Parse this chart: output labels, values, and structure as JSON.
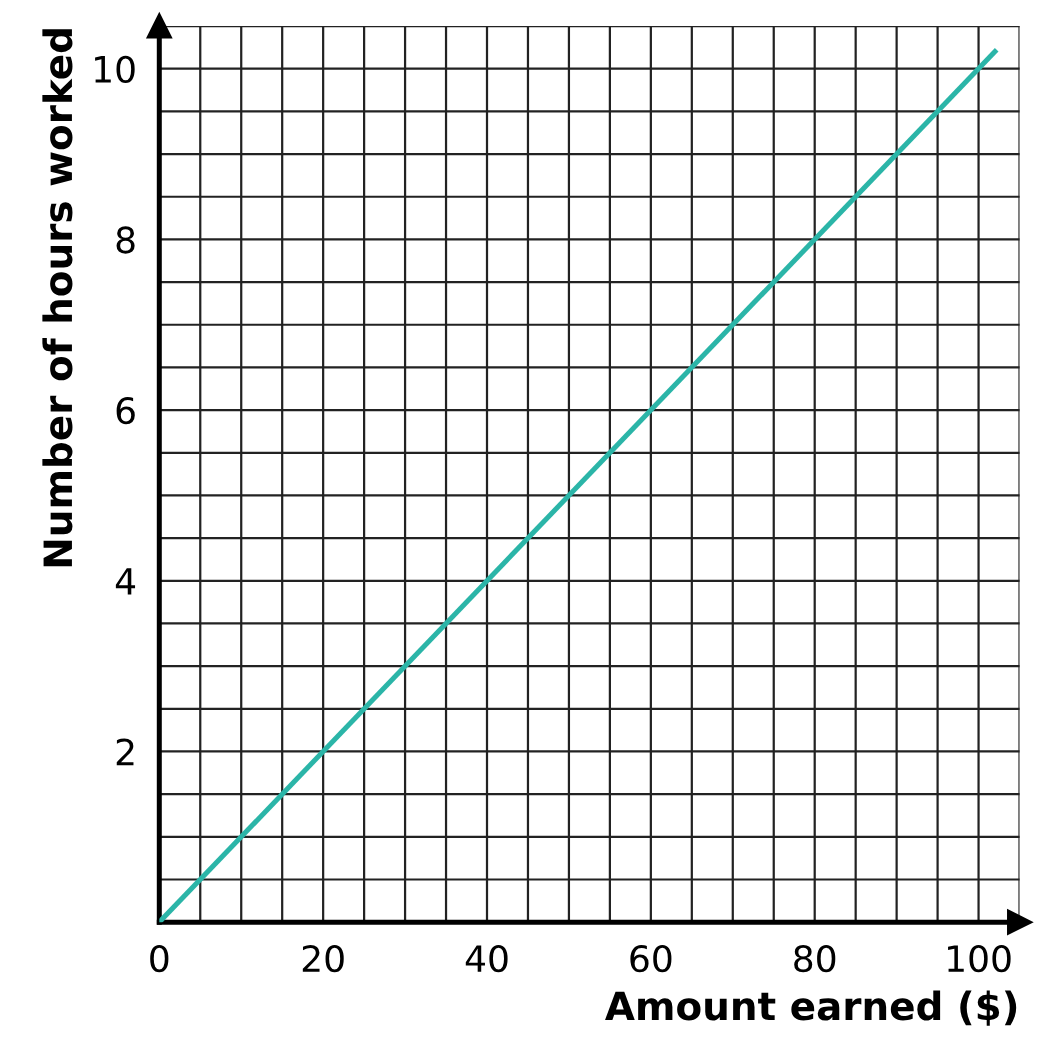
{
  "chart_data": {
    "type": "line",
    "xlabel": "Amount earned ($)",
    "ylabel": "Number of hours worked",
    "x": [
      0,
      102
    ],
    "series": [
      {
        "color": "#2bb5a8",
        "values": [
          0,
          10.2
        ]
      }
    ],
    "xlim": [
      0,
      105
    ],
    "ylim": [
      0,
      10.5
    ],
    "xticks": [
      0,
      {
        "value": 5,
        "label": null
      },
      {
        "value": 10,
        "label": null
      },
      {
        "value": 15,
        "label": null
      },
      20,
      {
        "value": 25,
        "label": null
      },
      {
        "value": 30,
        "label": null
      },
      {
        "value": 35,
        "label": null
      },
      40,
      {
        "value": 45,
        "label": null
      },
      {
        "value": 50,
        "label": null
      },
      {
        "value": 55,
        "label": null
      },
      60,
      {
        "value": 65,
        "label": null
      },
      {
        "value": 70,
        "label": null
      },
      {
        "value": 75,
        "label": null
      },
      80,
      {
        "value": 85,
        "label": null
      },
      {
        "value": 90,
        "label": null
      },
      {
        "value": 95,
        "label": null
      },
      100,
      {
        "value": 105,
        "label": null
      }
    ],
    "yticks": [
      {
        "value": 0.5,
        "label": null
      },
      {
        "value": 1,
        "label": null
      },
      {
        "value": 1.5,
        "label": null
      },
      2,
      {
        "value": 2.5,
        "label": null
      },
      {
        "value": 3,
        "label": null
      },
      {
        "value": 3.5,
        "label": null
      },
      4,
      {
        "value": 4.5,
        "label": null
      },
      {
        "value": 5,
        "label": null
      },
      {
        "value": 5.5,
        "label": null
      },
      6,
      {
        "value": 6.5,
        "label": null
      },
      {
        "value": 7,
        "label": null
      },
      {
        "value": 7.5,
        "label": null
      },
      8,
      {
        "value": 8.5,
        "label": null
      },
      {
        "value": 9,
        "label": null
      },
      {
        "value": 9.5,
        "label": null
      },
      10,
      {
        "value": 10.5,
        "label": null
      }
    ],
    "grid": true,
    "marker": "none",
    "line_style": "solid"
  }
}
